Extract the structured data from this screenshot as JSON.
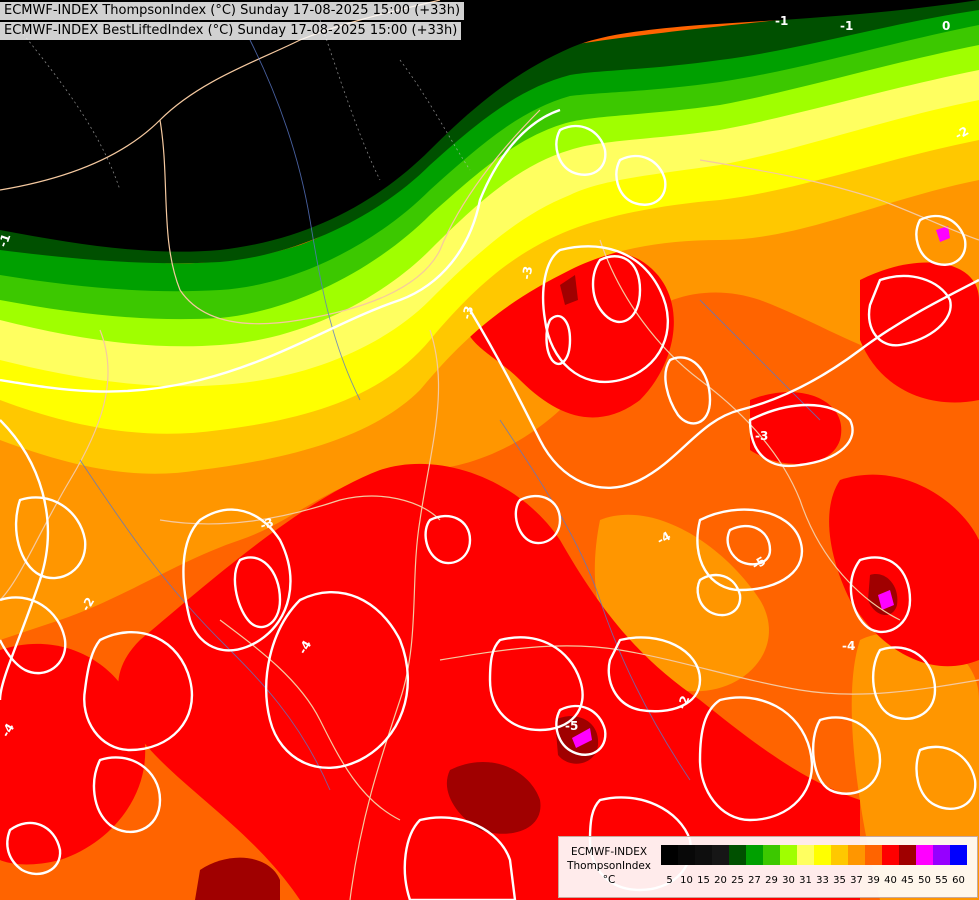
{
  "header": {
    "line1": "ECMWF-INDEX ThompsonIndex (°C) Sunday 17-08-2025 15:00 (+33h)",
    "line2": "ECMWF-INDEX BestLiftedIndex (°C) Sunday 17-08-2025 15:00 (+33h)"
  },
  "legend": {
    "title_line1": "ECMWF-INDEX",
    "title_line2": "ThompsonIndex",
    "unit": "°C",
    "ticks": [
      "5",
      "10",
      "15",
      "20",
      "25",
      "27",
      "29",
      "30",
      "31",
      "33",
      "35",
      "37",
      "39",
      "40",
      "45",
      "50",
      "55",
      "60"
    ],
    "colors": [
      "#000000",
      "#080808",
      "#0e0e0e",
      "#161616",
      "#005000",
      "#00a000",
      "#3cc800",
      "#a0ff00",
      "#ffff60",
      "#ffff00",
      "#ffc800",
      "#ff9600",
      "#ff6400",
      "#ff0000",
      "#a00000",
      "#ff00ff",
      "#9600ff",
      "#0000ff"
    ]
  },
  "map": {
    "contour_labels": [
      "-3",
      "-3",
      "-3",
      "-3",
      "-4",
      "-4",
      "-4",
      "-4",
      "-5",
      "-5",
      "-2",
      "-2",
      "-2",
      "-1",
      "-1",
      "-1",
      "0"
    ]
  }
}
